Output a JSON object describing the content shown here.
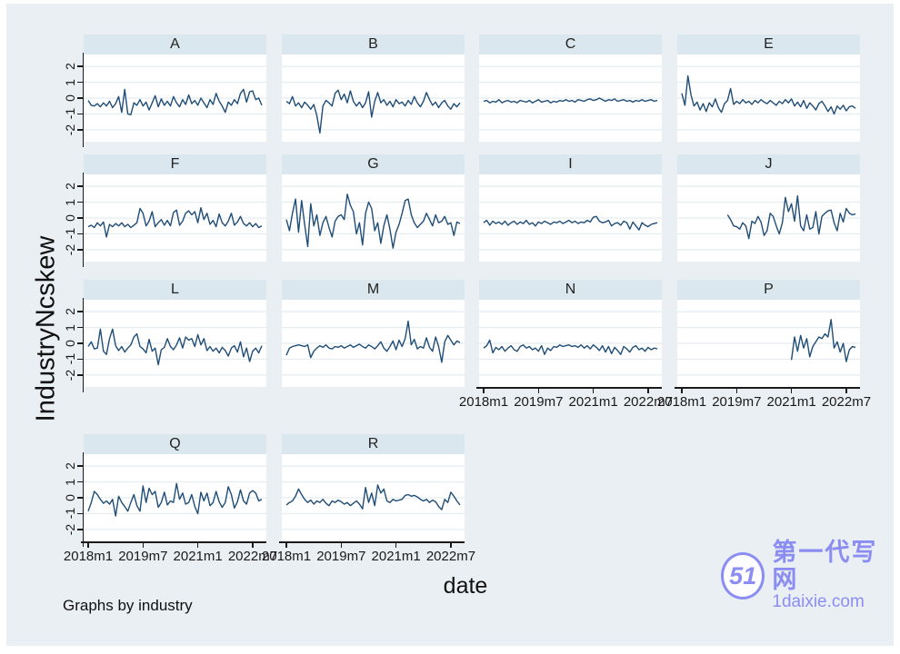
{
  "figure": {
    "ylabel": "IndustryNcskew",
    "xlabel": "date",
    "note": "Graphs by industry",
    "background": "#e9eff3",
    "panel_header_bg": "#dbe7ee",
    "plot_bg": "#ffffff",
    "grid_color": "#e3ecf0",
    "axis_color": "#1a1a1a",
    "line_color": "#1f4d77"
  },
  "watermark": {
    "logo_text": "51",
    "site_name": "第一代写网",
    "site_domain": "1daixie.com",
    "color": "#8b8df2"
  },
  "chart_data": {
    "type": "line",
    "title": "",
    "xlabel": "date",
    "ylabel": "IndustryNcskew",
    "note": "Graphs by industry",
    "layout": "small multiples by industry, 4 columns x 4 rows (last row has 2 panels)",
    "grid": true,
    "legend": "none",
    "line_color": "#1f4d77",
    "ylim": [
      -2.75,
      2.75
    ],
    "y_ticks": [
      2,
      1,
      0,
      -1,
      -2
    ],
    "x": {
      "unit": "month",
      "start": "2018m1",
      "n_points": 58,
      "tick_labels": [
        "2018m1",
        "2019m7",
        "2021m1",
        "2022m7"
      ],
      "tick_indices": [
        0,
        18,
        36,
        54
      ]
    },
    "values_note": "monthly Ncskew values estimated from pixels",
    "panels": [
      {
        "label": "A",
        "row": 0,
        "col": 0,
        "start_index": 0,
        "values": [
          -0.15,
          -0.45,
          -0.5,
          -0.35,
          -0.55,
          -0.3,
          -0.5,
          -0.2,
          -0.6,
          -0.35,
          0.1,
          -0.9,
          0.55,
          -1.0,
          -1.05,
          -0.3,
          -0.45,
          -0.1,
          -0.5,
          -0.25,
          -0.75,
          -0.3,
          0.15,
          -0.55,
          -0.05,
          -0.45,
          -0.2,
          -0.5,
          0.1,
          -0.3,
          -0.55,
          -0.1,
          -0.4,
          0.2,
          -0.35,
          -0.15,
          -0.45,
          0.0,
          -0.3,
          -0.6,
          -0.1,
          -0.4,
          0.3,
          -0.2,
          -0.5,
          -0.9,
          -0.25,
          -0.45,
          -0.1,
          -0.35,
          0.3,
          0.55,
          -0.25,
          0.4,
          0.45,
          -0.1,
          0.0,
          -0.45
        ]
      },
      {
        "label": "B",
        "row": 0,
        "col": 1,
        "start_index": 0,
        "values": [
          -0.2,
          -0.35,
          0.1,
          -0.5,
          -0.3,
          -0.6,
          -0.25,
          -0.45,
          -0.7,
          -0.4,
          -1.1,
          -2.2,
          -0.5,
          -0.15,
          -0.3,
          -0.5,
          0.3,
          0.5,
          -0.1,
          0.25,
          -0.3,
          0.45,
          -0.2,
          -0.5,
          -0.25,
          -0.6,
          -0.3,
          0.4,
          -1.2,
          -0.2,
          0.35,
          -0.3,
          -0.1,
          -0.45,
          -0.2,
          -0.55,
          -0.1,
          -0.35,
          -0.25,
          -0.5,
          -0.15,
          -0.4,
          0.1,
          -0.3,
          -0.55,
          -0.2,
          0.35,
          -0.1,
          -0.45,
          -0.25,
          -0.6,
          -0.3,
          -0.15,
          -0.5,
          -0.7,
          -0.35,
          -0.55,
          -0.3
        ]
      },
      {
        "label": "C",
        "row": 0,
        "col": 2,
        "start_index": 0,
        "values": [
          -0.2,
          -0.15,
          -0.3,
          -0.2,
          -0.25,
          -0.1,
          -0.3,
          -0.2,
          -0.15,
          -0.25,
          -0.2,
          -0.3,
          -0.15,
          -0.2,
          -0.25,
          -0.15,
          -0.3,
          -0.2,
          -0.1,
          -0.25,
          -0.2,
          -0.15,
          -0.3,
          -0.2,
          -0.25,
          -0.15,
          -0.2,
          -0.1,
          -0.2,
          -0.15,
          -0.25,
          -0.1,
          -0.15,
          -0.2,
          -0.1,
          -0.05,
          -0.15,
          -0.1,
          0.0,
          -0.1,
          -0.2,
          -0.1,
          -0.15,
          -0.05,
          -0.2,
          -0.15,
          -0.1,
          -0.2,
          -0.15,
          -0.25,
          -0.15,
          -0.2,
          -0.1,
          -0.2,
          -0.15,
          -0.1,
          -0.2,
          -0.15
        ]
      },
      {
        "label": "E",
        "row": 0,
        "col": 3,
        "start_index": 0,
        "values": [
          0.3,
          -0.45,
          1.4,
          0.2,
          -0.5,
          -0.25,
          -0.75,
          -0.35,
          -0.85,
          -0.3,
          -0.55,
          -0.05,
          -0.6,
          -0.9,
          -0.35,
          -0.15,
          0.6,
          -0.4,
          -0.2,
          -0.35,
          -0.1,
          -0.3,
          -0.2,
          -0.4,
          -0.15,
          -0.3,
          -0.1,
          -0.25,
          -0.35,
          -0.15,
          -0.3,
          -0.45,
          -0.2,
          -0.35,
          -0.1,
          -0.3,
          -0.05,
          -0.5,
          -0.25,
          -0.55,
          -0.15,
          -0.65,
          -0.3,
          -0.5,
          -0.75,
          -0.35,
          -0.2,
          -0.5,
          -0.85,
          -0.55,
          -1.0,
          -0.5,
          -0.7,
          -0.45,
          -0.8,
          -0.55,
          -0.5,
          -0.65
        ]
      },
      {
        "label": "F",
        "row": 1,
        "col": 0,
        "start_index": 0,
        "values": [
          -0.55,
          -0.45,
          -0.6,
          -0.3,
          -0.5,
          -0.25,
          -1.2,
          -0.4,
          -0.55,
          -0.35,
          -0.5,
          -0.3,
          -0.55,
          -0.4,
          -0.6,
          -0.45,
          -0.3,
          0.6,
          0.3,
          -0.5,
          -0.2,
          0.4,
          -0.55,
          -0.3,
          -0.1,
          -0.45,
          -0.15,
          -0.5,
          0.35,
          0.5,
          -0.45,
          -0.2,
          0.3,
          0.45,
          0.2,
          0.4,
          -0.3,
          0.65,
          -0.1,
          0.3,
          -0.4,
          -0.15,
          -0.55,
          0.25,
          -0.3,
          -0.5,
          -0.2,
          0.3,
          -0.45,
          -0.25,
          0.1,
          -0.35,
          -0.5,
          -0.3,
          -0.55,
          -0.35,
          -0.6,
          -0.5
        ]
      },
      {
        "label": "G",
        "row": 1,
        "col": 1,
        "start_index": 0,
        "values": [
          -0.1,
          -0.8,
          0.3,
          1.2,
          -0.9,
          1.1,
          -0.4,
          -1.8,
          0.9,
          -0.5,
          0.2,
          -1.1,
          -0.3,
          0.1,
          -0.6,
          -1.2,
          -0.2,
          0.1,
          0.2,
          -0.1,
          1.5,
          0.8,
          0.4,
          -1.0,
          -0.3,
          -1.7,
          0.3,
          1.0,
          0.6,
          -0.8,
          -0.3,
          -1.6,
          -0.5,
          0.2,
          -0.7,
          -1.9,
          -0.9,
          -0.4,
          0.3,
          1.1,
          1.2,
          0.2,
          -0.3,
          -0.6,
          -0.4,
          -0.2,
          0.3,
          -0.1,
          -0.5,
          0.2,
          -0.3,
          -0.2,
          0.1,
          -0.4,
          -0.3,
          -1.1,
          -0.25,
          -0.35
        ]
      },
      {
        "label": "I",
        "row": 1,
        "col": 2,
        "start_index": 0,
        "values": [
          -0.3,
          -0.15,
          -0.45,
          -0.2,
          -0.35,
          -0.25,
          -0.4,
          -0.2,
          -0.45,
          -0.3,
          -0.2,
          -0.4,
          -0.25,
          -0.35,
          -0.15,
          -0.4,
          -0.3,
          -0.5,
          -0.25,
          -0.35,
          -0.2,
          -0.3,
          -0.4,
          -0.25,
          -0.3,
          -0.2,
          -0.35,
          -0.25,
          -0.15,
          -0.3,
          -0.2,
          -0.35,
          -0.25,
          -0.3,
          -0.15,
          -0.25,
          0.05,
          0.1,
          -0.2,
          -0.3,
          -0.25,
          -0.15,
          -0.5,
          -0.35,
          -0.3,
          -0.45,
          -0.2,
          -0.3,
          -0.7,
          -0.25,
          -0.5,
          -0.75,
          -0.3,
          -0.45,
          -0.55,
          -0.4,
          -0.35,
          -0.3
        ]
      },
      {
        "label": "J",
        "row": 1,
        "col": 3,
        "start_index": 15,
        "values": [
          0.2,
          -0.1,
          -0.5,
          -0.55,
          -0.7,
          -0.3,
          -0.5,
          -1.3,
          -0.2,
          -0.35,
          0.1,
          -0.25,
          -1.1,
          -0.8,
          0.3,
          0.1,
          -0.5,
          -1.0,
          -0.3,
          1.3,
          0.4,
          0.9,
          -0.2,
          1.4,
          -0.5,
          -0.8,
          0.2,
          -0.7,
          -0.6,
          0.4,
          -1.0,
          0.1,
          0.3,
          0.45,
          0.5,
          -0.3,
          -0.8,
          0.3,
          -0.25,
          0.6,
          0.3,
          0.2,
          0.25
        ]
      },
      {
        "label": "L",
        "row": 2,
        "col": 0,
        "start_index": 0,
        "values": [
          -0.2,
          0.1,
          -0.35,
          -0.3,
          0.9,
          -0.5,
          -0.7,
          0.3,
          0.9,
          -0.15,
          -0.45,
          -0.2,
          -0.55,
          -0.3,
          -0.1,
          0.4,
          0.6,
          -0.2,
          -0.35,
          -0.6,
          0.25,
          -0.5,
          -0.3,
          -1.35,
          -0.4,
          -0.25,
          0.3,
          -0.2,
          -0.4,
          -0.1,
          0.35,
          -0.3,
          0.4,
          0.2,
          0.3,
          -0.2,
          0.55,
          -0.1,
          0.3,
          -0.45,
          -0.2,
          -0.5,
          -0.3,
          -0.6,
          -0.25,
          -0.45,
          -0.8,
          -0.3,
          -0.15,
          -0.55,
          0.1,
          -0.85,
          -0.3,
          -1.15,
          -0.5,
          -0.3,
          -0.6,
          -0.15
        ]
      },
      {
        "label": "M",
        "row": 2,
        "col": 1,
        "start_index": 0,
        "values": [
          -0.75,
          -0.3,
          -0.2,
          -0.15,
          -0.1,
          -0.15,
          -0.2,
          -0.1,
          -0.9,
          -0.5,
          -0.3,
          -0.15,
          -0.25,
          -0.1,
          -0.3,
          -0.35,
          -0.2,
          -0.25,
          -0.15,
          -0.3,
          -0.2,
          -0.1,
          -0.25,
          -0.15,
          -0.05,
          -0.2,
          -0.3,
          -0.1,
          -0.2,
          -0.35,
          -0.15,
          0.1,
          -0.3,
          -0.5,
          -0.2,
          0.15,
          -0.4,
          0.2,
          -0.2,
          0.3,
          1.4,
          -0.1,
          0.25,
          -0.35,
          -0.2,
          -0.3,
          0.35,
          -0.25,
          -0.5,
          0.4,
          -0.2,
          -1.2,
          0.1,
          0.5,
          0.2,
          -0.1,
          0.15,
          0.05
        ]
      },
      {
        "label": "N",
        "row": 2,
        "col": 2,
        "start_index": 0,
        "values": [
          -0.3,
          -0.15,
          0.2,
          -0.6,
          -0.25,
          -0.4,
          -0.2,
          -0.5,
          -0.3,
          -0.15,
          -0.4,
          -0.5,
          -0.2,
          -0.1,
          -0.3,
          -0.2,
          -0.4,
          -0.3,
          -0.5,
          -0.15,
          -0.7,
          -0.3,
          -0.45,
          -0.2,
          -0.25,
          -0.1,
          -0.2,
          -0.15,
          -0.1,
          -0.2,
          -0.15,
          -0.25,
          -0.1,
          -0.3,
          -0.15,
          -0.35,
          -0.1,
          -0.25,
          -0.45,
          -0.15,
          -0.55,
          -0.2,
          -0.65,
          -0.25,
          -0.45,
          -0.7,
          -0.2,
          -0.35,
          -0.55,
          -0.25,
          -0.15,
          -0.4,
          -0.3,
          -0.5,
          -0.25,
          -0.4,
          -0.3,
          -0.35
        ]
      },
      {
        "label": "P",
        "row": 2,
        "col": 3,
        "start_index": 36,
        "values": [
          -1.05,
          0.4,
          -0.5,
          0.5,
          -0.3,
          0.3,
          -0.85,
          -0.2,
          0.1,
          0.4,
          0.3,
          0.6,
          0.4,
          1.5,
          -0.3,
          0.1,
          -0.55,
          0.0,
          -1.15,
          -0.4,
          -0.2,
          -0.25
        ]
      },
      {
        "label": "Q",
        "row": 3,
        "col": 0,
        "start_index": 0,
        "values": [
          -0.85,
          -0.3,
          0.4,
          0.2,
          -0.1,
          -0.35,
          -0.2,
          -0.4,
          -0.1,
          -1.15,
          0.1,
          -0.3,
          -0.55,
          -0.85,
          -0.3,
          0.2,
          -0.5,
          -0.85,
          0.75,
          -0.3,
          0.6,
          0.2,
          0.4,
          -0.6,
          -0.3,
          0.35,
          -0.45,
          -0.2,
          -0.3,
          0.9,
          -0.1,
          0.3,
          -0.4,
          -0.3,
          0.2,
          -0.55,
          -1.0,
          0.35,
          -0.2,
          0.3,
          -0.5,
          -0.3,
          0.4,
          -0.25,
          -0.6,
          -0.3,
          0.7,
          0.2,
          -0.65,
          -0.25,
          0.5,
          -0.2,
          -0.4,
          0.3,
          0.45,
          0.3,
          -0.2,
          -0.1
        ]
      },
      {
        "label": "R",
        "row": 3,
        "col": 1,
        "start_index": 0,
        "values": [
          -0.45,
          -0.3,
          -0.2,
          0.1,
          0.55,
          0.2,
          -0.1,
          -0.3,
          -0.15,
          -0.4,
          -0.2,
          -0.3,
          -0.1,
          -0.35,
          -0.5,
          -0.2,
          -0.3,
          -0.15,
          -0.25,
          -0.4,
          -0.3,
          -0.5,
          -0.35,
          -0.2,
          -0.4,
          -0.7,
          0.65,
          -0.3,
          0.3,
          -0.5,
          0.8,
          0.3,
          0.55,
          -0.2,
          -0.3,
          -0.1,
          -0.2,
          -0.15,
          -0.1,
          0.15,
          0.2,
          0.1,
          0.15,
          0.05,
          -0.1,
          -0.2,
          -0.1,
          -0.3,
          -0.15,
          -0.25,
          -0.55,
          -0.75,
          -0.1,
          -0.3,
          0.35,
          0.1,
          -0.2,
          -0.45
        ]
      }
    ]
  }
}
